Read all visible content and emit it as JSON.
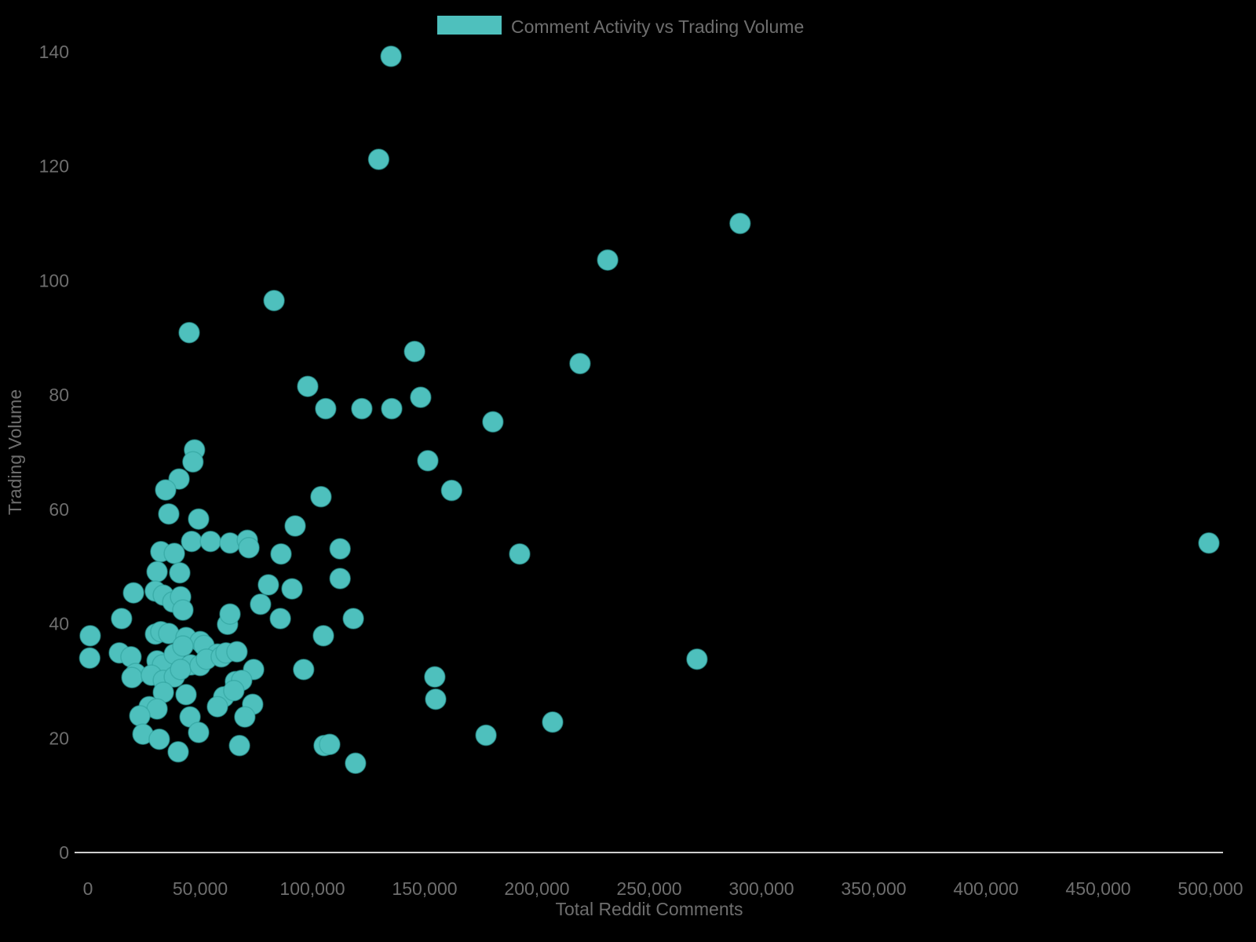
{
  "chart_data": {
    "type": "scatter",
    "legend_label": "Comment Activity vs Trading Volume",
    "xlabel": "Total Reddit Comments",
    "ylabel": "Trading Volume",
    "xlim": [
      0,
      500000
    ],
    "ylim": [
      0,
      140
    ],
    "grid": false,
    "legend_position": "top-center",
    "background_color": "#000000",
    "marker_color": "#4EC0BD",
    "marker_edge_color": "#2E9E9B",
    "text_color": "#6E6E6E",
    "axis_line_color": "#CFCFCF",
    "x_ticks": [
      0,
      50000,
      100000,
      150000,
      200000,
      250000,
      300000,
      350000,
      400000,
      450000,
      500000
    ],
    "x_tick_labels": [
      "0",
      "50,000",
      "100,000",
      "150,000",
      "200,000",
      "250,000",
      "300,000",
      "350,000",
      "400,000",
      "450,000",
      "500,000"
    ],
    "y_ticks": [
      0,
      20,
      40,
      60,
      80,
      100,
      120,
      140
    ],
    "y_tick_labels": [
      "0",
      "20",
      "40",
      "60",
      "80",
      "100",
      "120",
      "140"
    ],
    "points": [
      [
        135000,
        139.2
      ],
      [
        129500,
        121.2
      ],
      [
        290500,
        110
      ],
      [
        231500,
        103.6
      ],
      [
        82900,
        96.5
      ],
      [
        45100,
        90.9
      ],
      [
        145500,
        87.6
      ],
      [
        219200,
        85.5
      ],
      [
        97900,
        81.5
      ],
      [
        148200,
        79.6
      ],
      [
        105900,
        77.6
      ],
      [
        122000,
        77.6
      ],
      [
        135300,
        77.6
      ],
      [
        180400,
        75.3
      ],
      [
        151400,
        68.5
      ],
      [
        162000,
        63.3
      ],
      [
        103800,
        62.2
      ],
      [
        47500,
        70.4
      ],
      [
        46800,
        68.3
      ],
      [
        40600,
        65.3
      ],
      [
        34600,
        63.4
      ],
      [
        36000,
        59.2
      ],
      [
        49300,
        58.3
      ],
      [
        46200,
        54.4
      ],
      [
        54600,
        54.4
      ],
      [
        32500,
        52.6
      ],
      [
        38500,
        52.3
      ],
      [
        30800,
        49.1
      ],
      [
        40900,
        48.9
      ],
      [
        20300,
        45.4
      ],
      [
        30000,
        45.7
      ],
      [
        33600,
        45
      ],
      [
        37800,
        43.8
      ],
      [
        41300,
        44.7
      ],
      [
        92300,
        57.1
      ],
      [
        63300,
        54.1
      ],
      [
        71000,
        54.6
      ],
      [
        71700,
        53.3
      ],
      [
        86000,
        52.2
      ],
      [
        112300,
        53.1
      ],
      [
        112300,
        47.9
      ],
      [
        80400,
        46.8
      ],
      [
        90900,
        46.1
      ],
      [
        76900,
        43.4
      ],
      [
        1000,
        37.9
      ],
      [
        800,
        34
      ],
      [
        15000,
        40.9
      ],
      [
        42300,
        42.4
      ],
      [
        14000,
        34.9
      ],
      [
        19200,
        34.2
      ],
      [
        30100,
        38.2
      ],
      [
        32500,
        38.6
      ],
      [
        36000,
        38.3
      ],
      [
        43700,
        37.6
      ],
      [
        50000,
        36.9
      ],
      [
        51700,
        36.2
      ],
      [
        57700,
        34.7
      ],
      [
        30800,
        33.5
      ],
      [
        33200,
        32.8
      ],
      [
        38500,
        34.7
      ],
      [
        42300,
        36.1
      ],
      [
        45800,
        32.8
      ],
      [
        21300,
        31.3
      ],
      [
        19600,
        30.6
      ],
      [
        28300,
        31
      ],
      [
        33600,
        30.1
      ],
      [
        38500,
        30.7
      ],
      [
        41300,
        32
      ],
      [
        50000,
        32.7
      ],
      [
        52800,
        33.8
      ],
      [
        59400,
        34.2
      ],
      [
        61500,
        34.9
      ],
      [
        33600,
        28
      ],
      [
        43700,
        27.6
      ],
      [
        27300,
        25.5
      ],
      [
        30800,
        25.1
      ],
      [
        23100,
        23.9
      ],
      [
        45500,
        23.7
      ],
      [
        49300,
        21
      ],
      [
        24500,
        20.7
      ],
      [
        31800,
        19.8
      ],
      [
        40200,
        17.6
      ],
      [
        60500,
        27.2
      ],
      [
        57700,
        25.5
      ],
      [
        85700,
        40.9
      ],
      [
        118200,
        40.9
      ],
      [
        104900,
        37.9
      ],
      [
        62200,
        39.9
      ],
      [
        63300,
        41.7
      ],
      [
        66400,
        35.1
      ],
      [
        73800,
        32
      ],
      [
        96100,
        32
      ],
      [
        65700,
        29.9
      ],
      [
        68500,
        30.1
      ],
      [
        65000,
        28.3
      ],
      [
        73400,
        25.9
      ],
      [
        69900,
        23.7
      ],
      [
        67500,
        18.7
      ],
      [
        105200,
        18.7
      ],
      [
        107700,
        18.9
      ],
      [
        119200,
        15.6
      ],
      [
        192300,
        52.2
      ],
      [
        154500,
        30.7
      ],
      [
        154900,
        26.8
      ],
      [
        177300,
        20.5
      ],
      [
        207000,
        22.8
      ],
      [
        271300,
        33.8
      ],
      [
        499300,
        54.1
      ]
    ]
  }
}
